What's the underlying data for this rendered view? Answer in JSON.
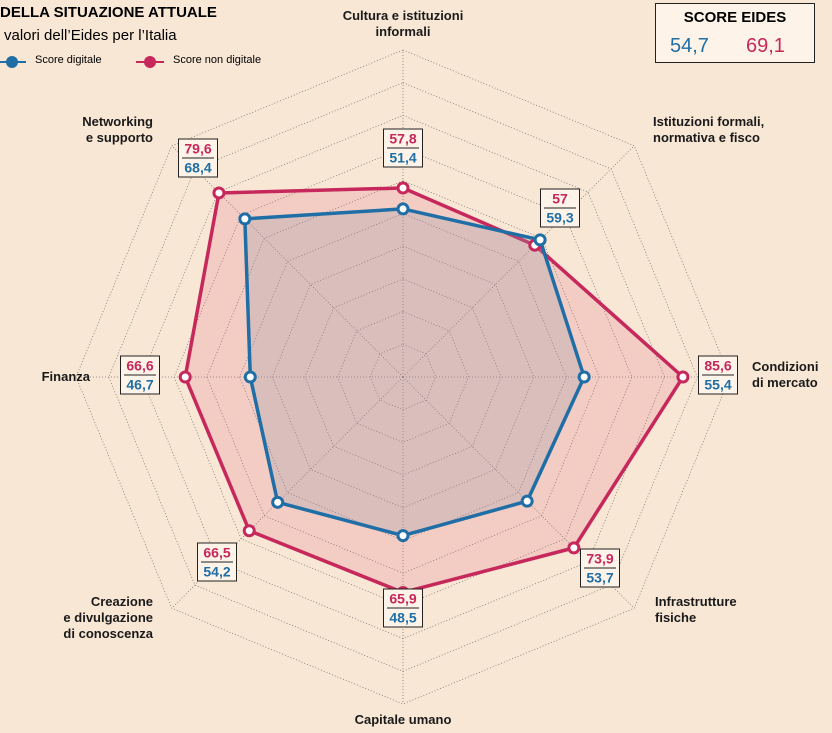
{
  "chart_data": {
    "type": "radar",
    "title": "DELLA SITUAZIONE ATTUALE",
    "subtitle": "valori dell’Eides per l’Italia",
    "categories": [
      "Cultura e istituzioni\ninformali",
      "Istituzioni formali,\nnormativa e fisco",
      "Condizioni\ndi mercato",
      "Infrastrutture\nfisiche",
      "Capitale umano",
      "Creazione\ne divulgazione\ndi conoscenza",
      "Finanza",
      "Networking\ne supporto"
    ],
    "series": [
      {
        "name": "Score digitale",
        "color": "#1f6ea6",
        "values": [
          51.4,
          59.3,
          55.4,
          53.7,
          48.5,
          54.2,
          46.7,
          68.4
        ],
        "value_labels": [
          "51,4",
          "59,3",
          "55,4",
          "53,7",
          "48,5",
          "54,2",
          "46,7",
          "68,4"
        ]
      },
      {
        "name": "Score non digitale",
        "color": "#c6285b",
        "values": [
          57.8,
          57,
          85.6,
          73.9,
          65.9,
          66.5,
          66.6,
          79.6
        ],
        "value_labels": [
          "57,8",
          "57",
          "85,6",
          "73,9",
          "65,9",
          "66,5",
          "66,6",
          "79,6"
        ]
      }
    ],
    "rlim": [
      0,
      100
    ],
    "rticks": [
      10,
      20,
      30,
      40,
      50,
      60,
      70,
      80,
      90,
      100
    ],
    "grid": true,
    "score_box": {
      "title": "SCORE EIDES",
      "values": [
        54.7,
        69.1
      ],
      "value_labels": [
        "54,7",
        "69,1"
      ]
    }
  }
}
